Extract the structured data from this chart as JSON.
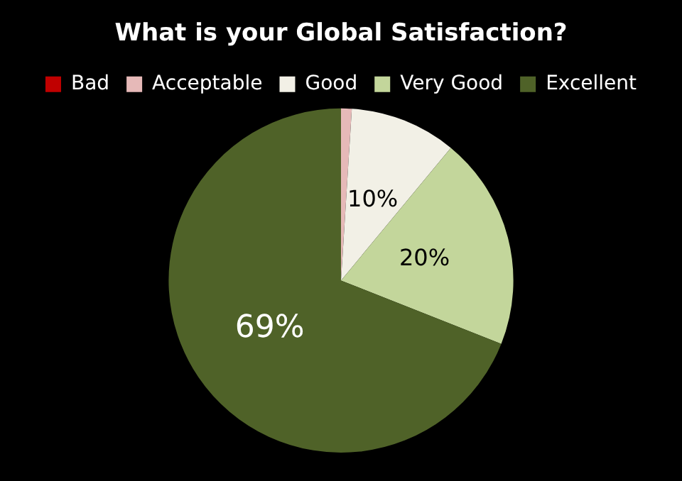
{
  "chart_data": {
    "type": "pie",
    "title": "What is your Global Satisfaction?",
    "categories": [
      "Bad",
      "Acceptable",
      "Good",
      "Very Good",
      "Excellent"
    ],
    "values": [
      0,
      1,
      10,
      20,
      69
    ],
    "colors": [
      "#c00000",
      "#e6b9b8",
      "#f2f0e6",
      "#c3d69b",
      "#4f6228"
    ],
    "value_labels": [
      null,
      null,
      "10%",
      "20%",
      "69%"
    ],
    "legend": "top"
  }
}
